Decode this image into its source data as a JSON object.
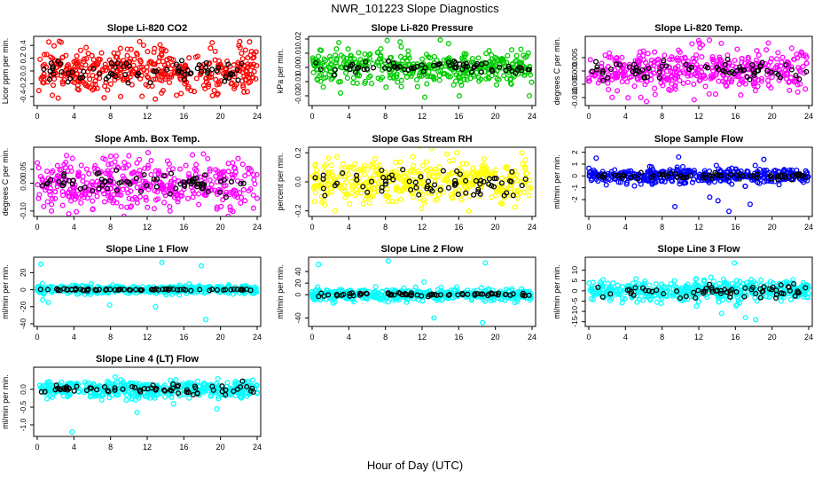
{
  "page": {
    "title": "NWR_101223  Slope Diagnostics",
    "xlabel": "Hour of Day (UTC)"
  },
  "chart_data": [
    {
      "type": "scatter",
      "title": "Slope Li-820 CO2",
      "ylabel": "Licor ppm per min.",
      "color": "#ff0000",
      "xlim": [
        0,
        24
      ],
      "xticks": [
        0,
        4,
        8,
        12,
        16,
        20,
        24
      ],
      "ylim": [
        -0.5,
        0.5
      ],
      "yticks": [
        -0.4,
        -0.2,
        0.0,
        0.2,
        0.4
      ],
      "yticklabels": [
        "-0.4",
        "-0.2",
        "0.0",
        "0.2",
        "0.4"
      ],
      "spread": 0.17,
      "black_spread": 0.1,
      "outliers": [
        [
          2.6,
          0.45
        ],
        [
          13.4,
          0.41
        ],
        [
          22.1,
          0.46
        ],
        [
          7.3,
          -0.42
        ],
        [
          9.1,
          -0.4
        ],
        [
          15.2,
          -0.38
        ]
      ]
    },
    {
      "type": "scatter",
      "title": "Slope Li-820 Pressure",
      "ylabel": "kPa per min.",
      "color": "#00cc00",
      "xlim": [
        0,
        24
      ],
      "xticks": [
        0,
        4,
        8,
        12,
        16,
        20,
        24
      ],
      "ylim": [
        -0.025,
        0.02
      ],
      "yticks": [
        -0.02,
        -0.01,
        0.0,
        0.01,
        0.02
      ],
      "yticklabels": [
        "-0.02",
        "-0.01",
        "0.00",
        "0.01",
        "0.02"
      ],
      "spread": 0.006,
      "black_spread": 0.002,
      "outliers": [
        [
          8.2,
          0.019
        ],
        [
          9.6,
          0.018
        ],
        [
          12.3,
          -0.021
        ],
        [
          23.7,
          -0.02
        ],
        [
          3.1,
          -0.018
        ]
      ]
    },
    {
      "type": "scatter",
      "title": "Slope Li-820 Temp.",
      "ylabel": "degrees C per min.",
      "color": "#ff00ff",
      "xlim": [
        0,
        24
      ],
      "xticks": [
        0,
        4,
        8,
        12,
        16,
        20,
        24
      ],
      "ylim": [
        -0.012,
        0.012
      ],
      "yticks": [
        -0.01,
        -0.005,
        0.0,
        0.005
      ],
      "yticklabels": [
        "-0.010",
        "-0.005",
        "0.000",
        "0.005"
      ],
      "spread": 0.004,
      "black_spread": 0.002,
      "outliers": [
        [
          19.6,
          0.0105
        ],
        [
          12.4,
          0.0098
        ],
        [
          6.3,
          -0.0115
        ],
        [
          11.5,
          -0.0108
        ]
      ]
    },
    {
      "type": "scatter",
      "title": "Slope Amb. Box Temp.",
      "ylabel": "degrees C per min.",
      "color": "#ff00ff",
      "xlim": [
        0,
        24
      ],
      "xticks": [
        0,
        4,
        8,
        12,
        16,
        20,
        24
      ],
      "ylim": [
        -0.11,
        0.12
      ],
      "yticks": [
        -0.1,
        0.0,
        0.05
      ],
      "yticklabels": [
        "-0.10",
        "0.00",
        "0.05"
      ],
      "spread": 0.045,
      "black_spread": 0.02,
      "outliers": [
        [
          3.2,
          0.1
        ],
        [
          14.5,
          -0.1
        ],
        [
          23.6,
          -0.09
        ],
        [
          8.6,
          0.098
        ]
      ]
    },
    {
      "type": "scatter",
      "title": "Slope Gas Stream RH",
      "ylabel": "percent per min.",
      "color": "#ffff00",
      "xlim": [
        0,
        24
      ],
      "xticks": [
        0,
        4,
        8,
        12,
        16,
        20,
        24
      ],
      "ylim": [
        -0.22,
        0.22
      ],
      "yticks": [
        -0.2,
        0.0,
        0.2
      ],
      "yticklabels": [
        "-0.2",
        "0.0",
        "0.2"
      ],
      "spread": 0.08,
      "black_spread": 0.05,
      "outliers": [
        [
          22.9,
          0.2
        ],
        [
          2.5,
          -0.2
        ],
        [
          14.7,
          0.19
        ]
      ]
    },
    {
      "type": "scatter",
      "title": "Slope Sample Flow",
      "ylabel": "ml/min per min.",
      "color": "#0000ff",
      "xlim": [
        0,
        24
      ],
      "xticks": [
        0,
        4,
        8,
        12,
        16,
        20,
        24
      ],
      "ylim": [
        -3.2,
        2.2
      ],
      "yticks": [
        -2,
        -1,
        0,
        1,
        2
      ],
      "yticklabels": [
        "-2",
        "-1",
        "0",
        "1",
        "2"
      ],
      "spread": 0.3,
      "black_spread": 0.15,
      "outliers": [
        [
          9.4,
          -2.6
        ],
        [
          15.3,
          -3.0
        ],
        [
          14.1,
          -2.1
        ],
        [
          17.6,
          -2.4
        ],
        [
          9.8,
          1.6
        ],
        [
          19.1,
          1.4
        ],
        [
          0.8,
          1.5
        ],
        [
          13.2,
          -1.8
        ]
      ]
    },
    {
      "type": "scatter",
      "title": "Slope Line 1 Flow",
      "ylabel": "ml/min per min.",
      "color": "#00ffff",
      "xlim": [
        0,
        24
      ],
      "xticks": [
        0,
        4,
        8,
        12,
        16,
        20,
        24
      ],
      "ylim": [
        -40,
        35
      ],
      "yticks": [
        -40,
        -20,
        0,
        20
      ],
      "yticklabels": [
        "-40",
        "-20",
        "0",
        "20"
      ],
      "spread": 2.5,
      "black_spread": 0.5,
      "outliers": [
        [
          0.4,
          30
        ],
        [
          1.2,
          -15
        ],
        [
          12.9,
          -20
        ],
        [
          13.6,
          32
        ],
        [
          18.4,
          -35
        ],
        [
          17.9,
          28
        ],
        [
          7.9,
          -18
        ],
        [
          0.6,
          -12
        ]
      ]
    },
    {
      "type": "scatter",
      "title": "Slope Line 2 Flow",
      "ylabel": "ml/min per min.",
      "color": "#00ffff",
      "xlim": [
        0,
        24
      ],
      "xticks": [
        0,
        4,
        8,
        12,
        16,
        20,
        24
      ],
      "ylim": [
        -50,
        60
      ],
      "yticks": [
        -40,
        0,
        20,
        40
      ],
      "yticklabels": [
        "-40",
        "0",
        "20",
        "40"
      ],
      "spread": 5,
      "black_spread": 1.5,
      "outliers": [
        [
          0.7,
          52
        ],
        [
          8.3,
          58
        ],
        [
          13.3,
          -40
        ],
        [
          18.6,
          -48
        ],
        [
          18.9,
          55
        ],
        [
          12.2,
          22
        ]
      ]
    },
    {
      "type": "scatter",
      "title": "Slope Line 3 Flow",
      "ylabel": "ml/min per min.",
      "color": "#00ffff",
      "xlim": [
        0,
        24
      ],
      "xticks": [
        0,
        4,
        8,
        12,
        16,
        20,
        24
      ],
      "ylim": [
        -16,
        15
      ],
      "yticks": [
        -15,
        -10,
        -5,
        0,
        5,
        10
      ],
      "yticklabels": [
        "-15",
        "-10",
        "-5",
        "0",
        "5",
        "10"
      ],
      "spread": 2.5,
      "black_spread": 1.6,
      "outliers": [
        [
          15.9,
          13.5
        ],
        [
          14.5,
          -11
        ],
        [
          18.2,
          -14
        ],
        [
          17.1,
          -13
        ]
      ]
    },
    {
      "type": "scatter",
      "title": "Slope Line 4 (LT) Flow",
      "ylabel": "ml/min per min.",
      "color": "#00ffff",
      "xlim": [
        0,
        24
      ],
      "xticks": [
        0,
        4,
        8,
        12,
        16,
        20,
        24
      ],
      "ylim": [
        -1.25,
        0.55
      ],
      "yticks": [
        -1.0,
        -0.5,
        0.0
      ],
      "yticklabels": [
        "-1.0",
        "-0.5",
        "0.0"
      ],
      "spread": 0.12,
      "black_spread": 0.08,
      "outliers": [
        [
          3.8,
          -1.2
        ],
        [
          10.9,
          -0.65
        ],
        [
          19.6,
          -0.55
        ],
        [
          8.5,
          0.35
        ]
      ]
    }
  ]
}
